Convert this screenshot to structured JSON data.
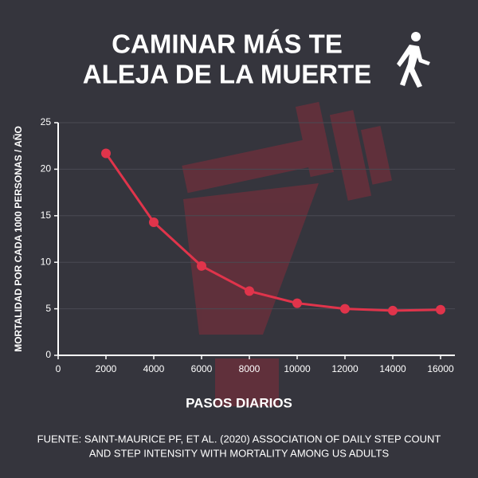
{
  "chart_data": {
    "type": "line",
    "title": [
      "CAMINAR MÁS TE",
      "ALEJA DE LA MUERTE"
    ],
    "x_label": "PASOS DIARIOS",
    "y_label": "MORTALIDAD POR CADA 1000 PERSONAS / AÑO",
    "x": [
      2000,
      4000,
      6000,
      8000,
      10000,
      12000,
      14000,
      16000
    ],
    "series": [
      {
        "name": "Mortalidad",
        "color": "#e0344b",
        "values": [
          21.7,
          14.3,
          9.6,
          6.9,
          5.6,
          5.0,
          4.8,
          4.9
        ]
      }
    ],
    "xlim": [
      0,
      16600
    ],
    "xticks": [
      0,
      2000,
      4000,
      6000,
      8000,
      10000,
      12000,
      14000,
      16000
    ],
    "ylim": [
      0,
      25
    ],
    "yticks": [
      0,
      5,
      10,
      15,
      20,
      25
    ],
    "grid": true,
    "source": [
      "FUENTE: SAINT-MAURICE PF, ET AL. (2020) ASSOCIATION OF DAILY STEP COUNT",
      "AND STEP INTENSITY WITH MORTALITY AMONG US ADULTS"
    ]
  }
}
